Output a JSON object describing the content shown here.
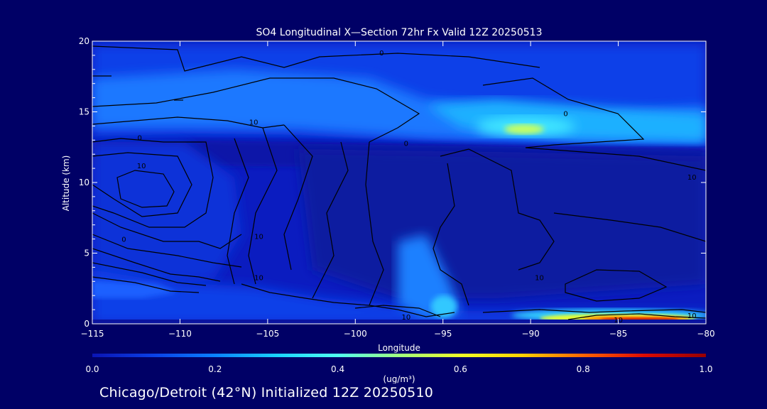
{
  "chart_data": {
    "type": "heatmap",
    "title": "SO4 Longitudinal X—Section 72hr  Fx Valid 12Z 20250513",
    "xlabel": "Longitude",
    "ylabel": "Altitude (km)",
    "xlim": [
      -115,
      -80
    ],
    "ylim": [
      0,
      20
    ],
    "x_ticks": [
      -115,
      -110,
      -105,
      -100,
      -95,
      -90,
      -85,
      -80
    ],
    "x_tick_labels": [
      "−115",
      "−110",
      "−105",
      "−100",
      "−95",
      "−90",
      "−85",
      "−80"
    ],
    "y_ticks": [
      0,
      5,
      10,
      15,
      20
    ],
    "y_tick_labels": [
      "0",
      "5",
      "10",
      "15",
      "20"
    ],
    "colorbar": {
      "min": 0.0,
      "max": 1.0,
      "tick_values": [
        0.0,
        0.2,
        0.4,
        0.6,
        0.8,
        1.0
      ],
      "tick_labels": [
        "0.0",
        "0.2",
        "0.4",
        "0.6",
        "0.8",
        "1.0"
      ],
      "units": "(ug/m³)",
      "colors": [
        "#0a14b4",
        "#0a40e6",
        "#0a82ff",
        "#19d2ff",
        "#50fff0",
        "#a0ff80",
        "#f0ff28",
        "#ffd200",
        "#ff6400",
        "#dc0a00",
        "#960000"
      ]
    },
    "contour_labels": [
      {
        "text": "0",
        "lon": -98.5,
        "alt": 19.2
      },
      {
        "text": "10",
        "lon": -105.8,
        "alt": 14.3
      },
      {
        "text": "0",
        "lon": -112.3,
        "alt": 13.2
      },
      {
        "text": "0",
        "lon": -97.1,
        "alt": 12.8
      },
      {
        "text": "10",
        "lon": -112.2,
        "alt": 11.2
      },
      {
        "text": "0",
        "lon": -88.0,
        "alt": 14.9
      },
      {
        "text": "10",
        "lon": -80.8,
        "alt": 10.4
      },
      {
        "text": "0",
        "lon": -113.2,
        "alt": 6.0
      },
      {
        "text": "10",
        "lon": -105.5,
        "alt": 6.2
      },
      {
        "text": "10",
        "lon": -105.5,
        "alt": 3.3
      },
      {
        "text": "10",
        "lon": -89.5,
        "alt": 3.3
      },
      {
        "text": "10",
        "lon": -97.1,
        "alt": 0.5
      },
      {
        "text": "10",
        "lon": -85.0,
        "alt": 0.3
      },
      {
        "text": "10",
        "lon": -80.8,
        "alt": 0.6
      }
    ],
    "grid": false
  },
  "footer_text": "Chicago/Detroit (42°N) Initialized 12Z 20250510"
}
